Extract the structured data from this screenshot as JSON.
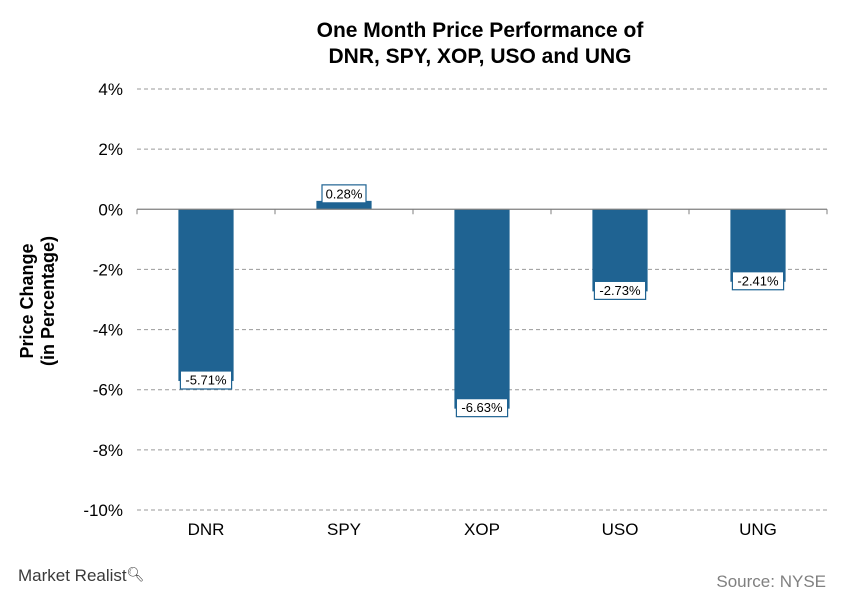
{
  "chart_data": {
    "type": "bar",
    "title_lines": [
      "One Month Price Performance of",
      "DNR, SPY, XOP, USO and UNG"
    ],
    "ylabel_lines": [
      "Price Change",
      "(in Percentage)"
    ],
    "xlabel": "",
    "categories": [
      "DNR",
      "SPY",
      "XOP",
      "USO",
      "UNG"
    ],
    "values": [
      -5.71,
      0.28,
      -6.63,
      -2.73,
      -2.41
    ],
    "data_labels": [
      "-5.71%",
      "0.28%",
      "-6.63%",
      "-2.73%",
      "-2.41%"
    ],
    "ylim": [
      -10,
      4
    ],
    "yticks": [
      4,
      2,
      0,
      -2,
      -4,
      -6,
      -8,
      -10
    ],
    "ytick_labels": [
      "4%",
      "2%",
      "0%",
      "-2%",
      "-4%",
      "-6%",
      "-8%",
      "-10%"
    ],
    "grid": true,
    "legend": "none",
    "bar_color": "#1f6392"
  },
  "footer": {
    "brand": "Market Realist",
    "source": "Source: NYSE"
  }
}
